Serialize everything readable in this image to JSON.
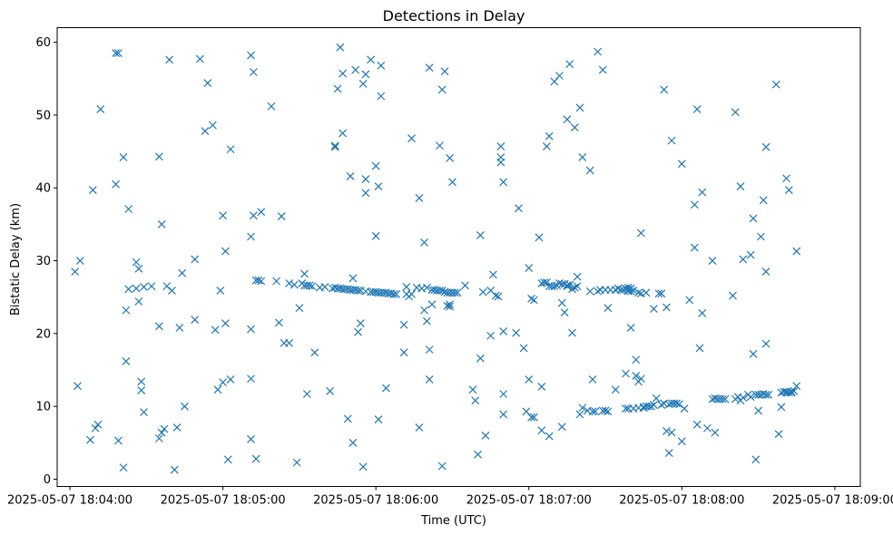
{
  "chart_data": {
    "type": "scatter",
    "title": "Detections in Delay",
    "xlabel": "Time (UTC)",
    "ylabel": "Bistatic Delay (km)",
    "marker": "x",
    "color": "#1f77b4",
    "x_unit": "seconds after 2025-05-07 18:04:00",
    "xlim": [
      -5,
      310
    ],
    "ylim": [
      -1,
      62
    ],
    "x_ticks": [
      {
        "value": 0,
        "label": "2025-05-07 18:04:00"
      },
      {
        "value": 60,
        "label": "2025-05-07 18:05:00"
      },
      {
        "value": 120,
        "label": "2025-05-07 18:06:00"
      },
      {
        "value": 180,
        "label": "2025-05-07 18:07:00"
      },
      {
        "value": 240,
        "label": "2025-05-07 18:08:00"
      },
      {
        "value": 300,
        "label": "2025-05-07 18:09:00"
      }
    ],
    "y_ticks": [
      {
        "value": 0,
        "label": "0"
      },
      {
        "value": 10,
        "label": "10"
      },
      {
        "value": 20,
        "label": "20"
      },
      {
        "value": 30,
        "label": "30"
      },
      {
        "value": 40,
        "label": "40"
      },
      {
        "value": 50,
        "label": "50"
      },
      {
        "value": 60,
        "label": "60"
      }
    ],
    "points": [
      [
        2,
        28.5
      ],
      [
        3,
        12.8
      ],
      [
        4,
        30
      ],
      [
        8,
        5.4
      ],
      [
        9,
        39.7
      ],
      [
        10,
        7
      ],
      [
        11,
        7.5
      ],
      [
        12,
        50.8
      ],
      [
        18,
        58.5
      ],
      [
        18,
        40.5
      ],
      [
        19,
        58.5
      ],
      [
        19,
        5.3
      ],
      [
        21,
        1.6
      ],
      [
        21,
        44.2
      ],
      [
        22,
        23.2
      ],
      [
        22,
        16.2
      ],
      [
        23,
        37.1
      ],
      [
        23,
        26.1
      ],
      [
        26,
        29.8
      ],
      [
        26,
        26.2
      ],
      [
        27,
        24.4
      ],
      [
        27,
        28.9
      ],
      [
        28,
        13.4
      ],
      [
        28,
        12.2
      ],
      [
        29,
        26.4
      ],
      [
        29,
        9.2
      ],
      [
        32,
        26.5
      ],
      [
        35,
        44.3
      ],
      [
        35,
        21
      ],
      [
        35,
        5.6
      ],
      [
        36,
        35
      ],
      [
        36,
        6.4
      ],
      [
        37,
        6.9
      ],
      [
        38,
        26.5
      ],
      [
        39,
        57.6
      ],
      [
        40,
        25.9
      ],
      [
        41,
        1.3
      ],
      [
        42,
        7.1
      ],
      [
        43,
        20.8
      ],
      [
        44,
        28.3
      ],
      [
        45,
        10
      ],
      [
        49,
        30.2
      ],
      [
        49,
        21.9
      ],
      [
        51,
        57.7
      ],
      [
        53,
        47.8
      ],
      [
        54,
        54.4
      ],
      [
        56,
        48.6
      ],
      [
        57,
        20.5
      ],
      [
        58,
        12.3
      ],
      [
        59,
        25.9
      ],
      [
        60,
        36.2
      ],
      [
        60,
        13.3
      ],
      [
        61,
        31.3
      ],
      [
        61,
        21.4
      ],
      [
        62,
        2.7
      ],
      [
        63,
        13.7
      ],
      [
        63,
        45.3
      ],
      [
        71,
        33.3
      ],
      [
        71,
        13.8
      ],
      [
        71,
        5.5
      ],
      [
        71,
        20.6
      ],
      [
        71,
        58.2
      ],
      [
        72,
        55.9
      ],
      [
        72,
        36.2
      ],
      [
        73,
        2.8
      ],
      [
        73,
        27.3
      ],
      [
        74,
        27.3
      ],
      [
        75,
        27.2
      ],
      [
        75,
        36.7
      ],
      [
        79,
        51.2
      ],
      [
        81,
        27.2
      ],
      [
        82,
        21.5
      ],
      [
        83,
        36.1
      ],
      [
        84,
        18.7
      ],
      [
        86,
        26.9
      ],
      [
        86,
        18.7
      ],
      [
        88,
        26.7
      ],
      [
        89,
        2.3
      ],
      [
        90,
        23.5
      ],
      [
        91,
        26.9
      ],
      [
        92,
        26.6
      ],
      [
        92,
        28.2
      ],
      [
        93,
        11.7
      ],
      [
        93,
        26.6
      ],
      [
        94,
        26.6
      ],
      [
        95,
        26.5
      ],
      [
        96,
        17.4
      ],
      [
        98,
        26.3
      ],
      [
        100,
        26.4
      ],
      [
        102,
        12.1
      ],
      [
        103,
        26.2
      ],
      [
        104,
        26.3
      ],
      [
        104,
        45.8
      ],
      [
        104,
        45.6
      ],
      [
        105,
        53.6
      ],
      [
        105,
        26.2
      ],
      [
        106,
        26.2
      ],
      [
        106,
        59.3
      ],
      [
        107,
        55.7
      ],
      [
        107,
        47.5
      ],
      [
        107,
        26.1
      ],
      [
        108,
        26.1
      ],
      [
        109,
        26.1
      ],
      [
        109,
        8.3
      ],
      [
        110,
        26
      ],
      [
        110,
        41.6
      ],
      [
        111,
        27.6
      ],
      [
        111,
        26
      ],
      [
        111,
        5
      ],
      [
        112,
        26
      ],
      [
        112,
        56.2
      ],
      [
        113,
        20.2
      ],
      [
        113,
        25.9
      ],
      [
        114,
        25.9
      ],
      [
        114,
        21.4
      ],
      [
        115,
        1.7
      ],
      [
        115,
        54.3
      ],
      [
        116,
        41.2
      ],
      [
        116,
        55.6
      ],
      [
        116,
        25.8
      ],
      [
        116,
        39.3
      ],
      [
        118,
        57.6
      ],
      [
        118,
        25.7
      ],
      [
        119,
        25.7
      ],
      [
        120,
        25.7
      ],
      [
        120,
        33.4
      ],
      [
        120,
        43
      ],
      [
        121,
        8.2
      ],
      [
        121,
        25.6
      ],
      [
        121,
        40.2
      ],
      [
        122,
        56.8
      ],
      [
        122,
        52.6
      ],
      [
        122,
        25.6
      ],
      [
        123,
        25.6
      ],
      [
        124,
        25.6
      ],
      [
        124,
        12.5
      ],
      [
        125,
        25.5
      ],
      [
        126,
        25.5
      ],
      [
        127,
        25.4
      ],
      [
        128,
        25.4
      ],
      [
        131,
        17.4
      ],
      [
        131,
        21.2
      ],
      [
        132,
        26.4
      ],
      [
        132,
        25.4
      ],
      [
        133,
        25.1
      ],
      [
        134,
        25.4
      ],
      [
        134,
        46.8
      ],
      [
        136,
        26.3
      ],
      [
        137,
        7.1
      ],
      [
        137,
        38.6
      ],
      [
        138,
        26.2
      ],
      [
        139,
        32.5
      ],
      [
        139,
        23.2
      ],
      [
        140,
        21.7
      ],
      [
        140,
        26.3
      ],
      [
        141,
        13.7
      ],
      [
        141,
        17.8
      ],
      [
        141,
        56.5
      ],
      [
        142,
        26
      ],
      [
        142,
        24
      ],
      [
        143,
        26
      ],
      [
        144,
        25.9
      ],
      [
        145,
        45.8
      ],
      [
        145,
        25.9
      ],
      [
        146,
        53.5
      ],
      [
        146,
        25.9
      ],
      [
        146,
        1.8
      ],
      [
        147,
        56
      ],
      [
        147,
        25.7
      ],
      [
        148,
        25.6
      ],
      [
        148,
        23.8
      ],
      [
        149,
        25.6
      ],
      [
        149,
        24
      ],
      [
        149,
        44.1
      ],
      [
        149,
        23.7
      ],
      [
        150,
        40.8
      ],
      [
        150,
        25.6
      ],
      [
        151,
        25.6
      ],
      [
        152,
        25.6
      ],
      [
        155,
        26.6
      ],
      [
        158,
        12.3
      ],
      [
        159,
        10.8
      ],
      [
        160,
        3.4
      ],
      [
        161,
        16.6
      ],
      [
        161,
        33.5
      ],
      [
        162,
        25.7
      ],
      [
        163,
        6
      ],
      [
        165,
        25.9
      ],
      [
        165,
        19.7
      ],
      [
        166,
        28.1
      ],
      [
        167,
        25.2
      ],
      [
        168,
        25.1
      ],
      [
        169,
        43.5
      ],
      [
        169,
        44.2
      ],
      [
        169,
        45.7
      ],
      [
        170,
        40.8
      ],
      [
        170,
        8.9
      ],
      [
        170,
        11.7
      ],
      [
        170,
        20.3
      ],
      [
        175,
        20.1
      ],
      [
        176,
        37.2
      ],
      [
        178,
        18
      ],
      [
        179,
        9.3
      ],
      [
        180,
        29
      ],
      [
        180,
        13.7
      ],
      [
        181,
        24.8
      ],
      [
        181,
        8.5
      ],
      [
        182,
        8.5
      ],
      [
        182,
        24.6
      ],
      [
        184,
        33.2
      ],
      [
        185,
        12.7
      ],
      [
        185,
        26.9
      ],
      [
        185,
        6.7
      ],
      [
        186,
        27
      ],
      [
        187,
        45.7
      ],
      [
        187,
        27
      ],
      [
        188,
        5.9
      ],
      [
        188,
        47.1
      ],
      [
        188,
        26.5
      ],
      [
        189,
        26.5
      ],
      [
        190,
        54.6
      ],
      [
        190,
        26.5
      ],
      [
        191,
        26.6
      ],
      [
        192,
        55.4
      ],
      [
        192,
        26.9
      ],
      [
        193,
        7.2
      ],
      [
        193,
        26.8
      ],
      [
        193,
        24.2
      ],
      [
        194,
        26.8
      ],
      [
        194,
        22.9
      ],
      [
        195,
        26.6
      ],
      [
        195,
        49.4
      ],
      [
        195,
        26.5
      ],
      [
        196,
        57
      ],
      [
        196,
        26.7
      ],
      [
        197,
        20.1
      ],
      [
        197,
        26.1
      ],
      [
        198,
        26.3
      ],
      [
        198,
        48.3
      ],
      [
        199,
        27.8
      ],
      [
        199,
        26.5
      ],
      [
        200,
        8.9
      ],
      [
        200,
        51
      ],
      [
        201,
        9.8
      ],
      [
        201,
        44.2
      ],
      [
        203,
        9.4
      ],
      [
        204,
        25.8
      ],
      [
        204,
        42.4
      ],
      [
        205,
        9.3
      ],
      [
        205,
        13.7
      ],
      [
        206,
        9.3
      ],
      [
        207,
        25.8
      ],
      [
        207,
        58.7
      ],
      [
        208,
        26
      ],
      [
        209,
        56.2
      ],
      [
        209,
        9.4
      ],
      [
        210,
        26
      ],
      [
        210,
        9.4
      ],
      [
        211,
        9.3
      ],
      [
        211,
        23.5
      ],
      [
        212,
        26
      ],
      [
        214,
        26
      ],
      [
        214,
        12.3
      ],
      [
        215,
        26.2
      ],
      [
        216,
        26
      ],
      [
        217,
        26
      ],
      [
        218,
        9.7
      ],
      [
        218,
        14.5
      ],
      [
        218,
        26.2
      ],
      [
        219,
        26
      ],
      [
        219,
        9.7
      ],
      [
        219,
        26.3
      ],
      [
        219,
        25.8
      ],
      [
        220,
        25.8
      ],
      [
        220,
        26.2
      ],
      [
        220,
        20.8
      ],
      [
        221,
        9.7
      ],
      [
        221,
        25.9
      ],
      [
        222,
        14.2
      ],
      [
        222,
        16.4
      ],
      [
        223,
        13.4
      ],
      [
        223,
        25.6
      ],
      [
        223,
        9.8
      ],
      [
        224,
        13.8
      ],
      [
        224,
        33.8
      ],
      [
        224,
        25.5
      ],
      [
        225,
        9.9
      ],
      [
        225,
        9.8
      ],
      [
        226,
        10
      ],
      [
        226,
        25.6
      ],
      [
        227,
        10
      ],
      [
        228,
        10
      ],
      [
        229,
        23.4
      ],
      [
        229,
        10.2
      ],
      [
        230,
        11.1
      ],
      [
        231,
        25.5
      ],
      [
        232,
        25.5
      ],
      [
        232,
        10.2
      ],
      [
        233,
        53.5
      ],
      [
        233,
        10.4
      ],
      [
        234,
        23.6
      ],
      [
        234,
        6.6
      ],
      [
        235,
        10.3
      ],
      [
        235,
        3.6
      ],
      [
        236,
        10.4
      ],
      [
        236,
        46.5
      ],
      [
        236,
        6.4
      ],
      [
        237,
        10.4
      ],
      [
        238,
        10.4
      ],
      [
        239,
        10.3
      ],
      [
        240,
        5.2
      ],
      [
        240,
        43.3
      ],
      [
        241,
        9.7
      ],
      [
        243,
        24.6
      ],
      [
        245,
        37.7
      ],
      [
        245,
        31.8
      ],
      [
        246,
        50.8
      ],
      [
        246,
        7.5
      ],
      [
        247,
        18
      ],
      [
        248,
        22.8
      ],
      [
        248,
        39.4
      ],
      [
        250,
        7
      ],
      [
        252,
        11
      ],
      [
        252,
        30
      ],
      [
        253,
        6.4
      ],
      [
        253,
        11.1
      ],
      [
        254,
        11
      ],
      [
        255,
        11
      ],
      [
        256,
        11
      ],
      [
        257,
        11
      ],
      [
        260,
        25.2
      ],
      [
        261,
        50.4
      ],
      [
        261,
        11
      ],
      [
        262,
        11.3
      ],
      [
        263,
        40.2
      ],
      [
        263,
        10.8
      ],
      [
        264,
        30.2
      ],
      [
        264,
        11.2
      ],
      [
        266,
        11.6
      ],
      [
        267,
        30.8
      ],
      [
        267,
        11.3
      ],
      [
        268,
        35.8
      ],
      [
        268,
        17.2
      ],
      [
        269,
        11.6
      ],
      [
        269,
        2.7
      ],
      [
        270,
        9.4
      ],
      [
        270,
        11.6
      ],
      [
        271,
        33.3
      ],
      [
        271,
        11.6
      ],
      [
        272,
        38.3
      ],
      [
        272,
        11.7
      ],
      [
        273,
        28.5
      ],
      [
        273,
        18.6
      ],
      [
        273,
        11.6
      ],
      [
        273,
        45.6
      ],
      [
        274,
        11.6
      ],
      [
        277,
        54.2
      ],
      [
        278,
        6.2
      ],
      [
        279,
        11.9
      ],
      [
        279,
        9.9
      ],
      [
        280,
        12
      ],
      [
        281,
        11.9
      ],
      [
        281,
        41.3
      ],
      [
        281,
        12
      ],
      [
        282,
        11.9
      ],
      [
        282,
        39.7
      ],
      [
        283,
        11.9
      ],
      [
        283,
        12
      ],
      [
        284,
        12.1
      ],
      [
        285,
        31.3
      ],
      [
        285,
        12.8
      ]
    ]
  }
}
